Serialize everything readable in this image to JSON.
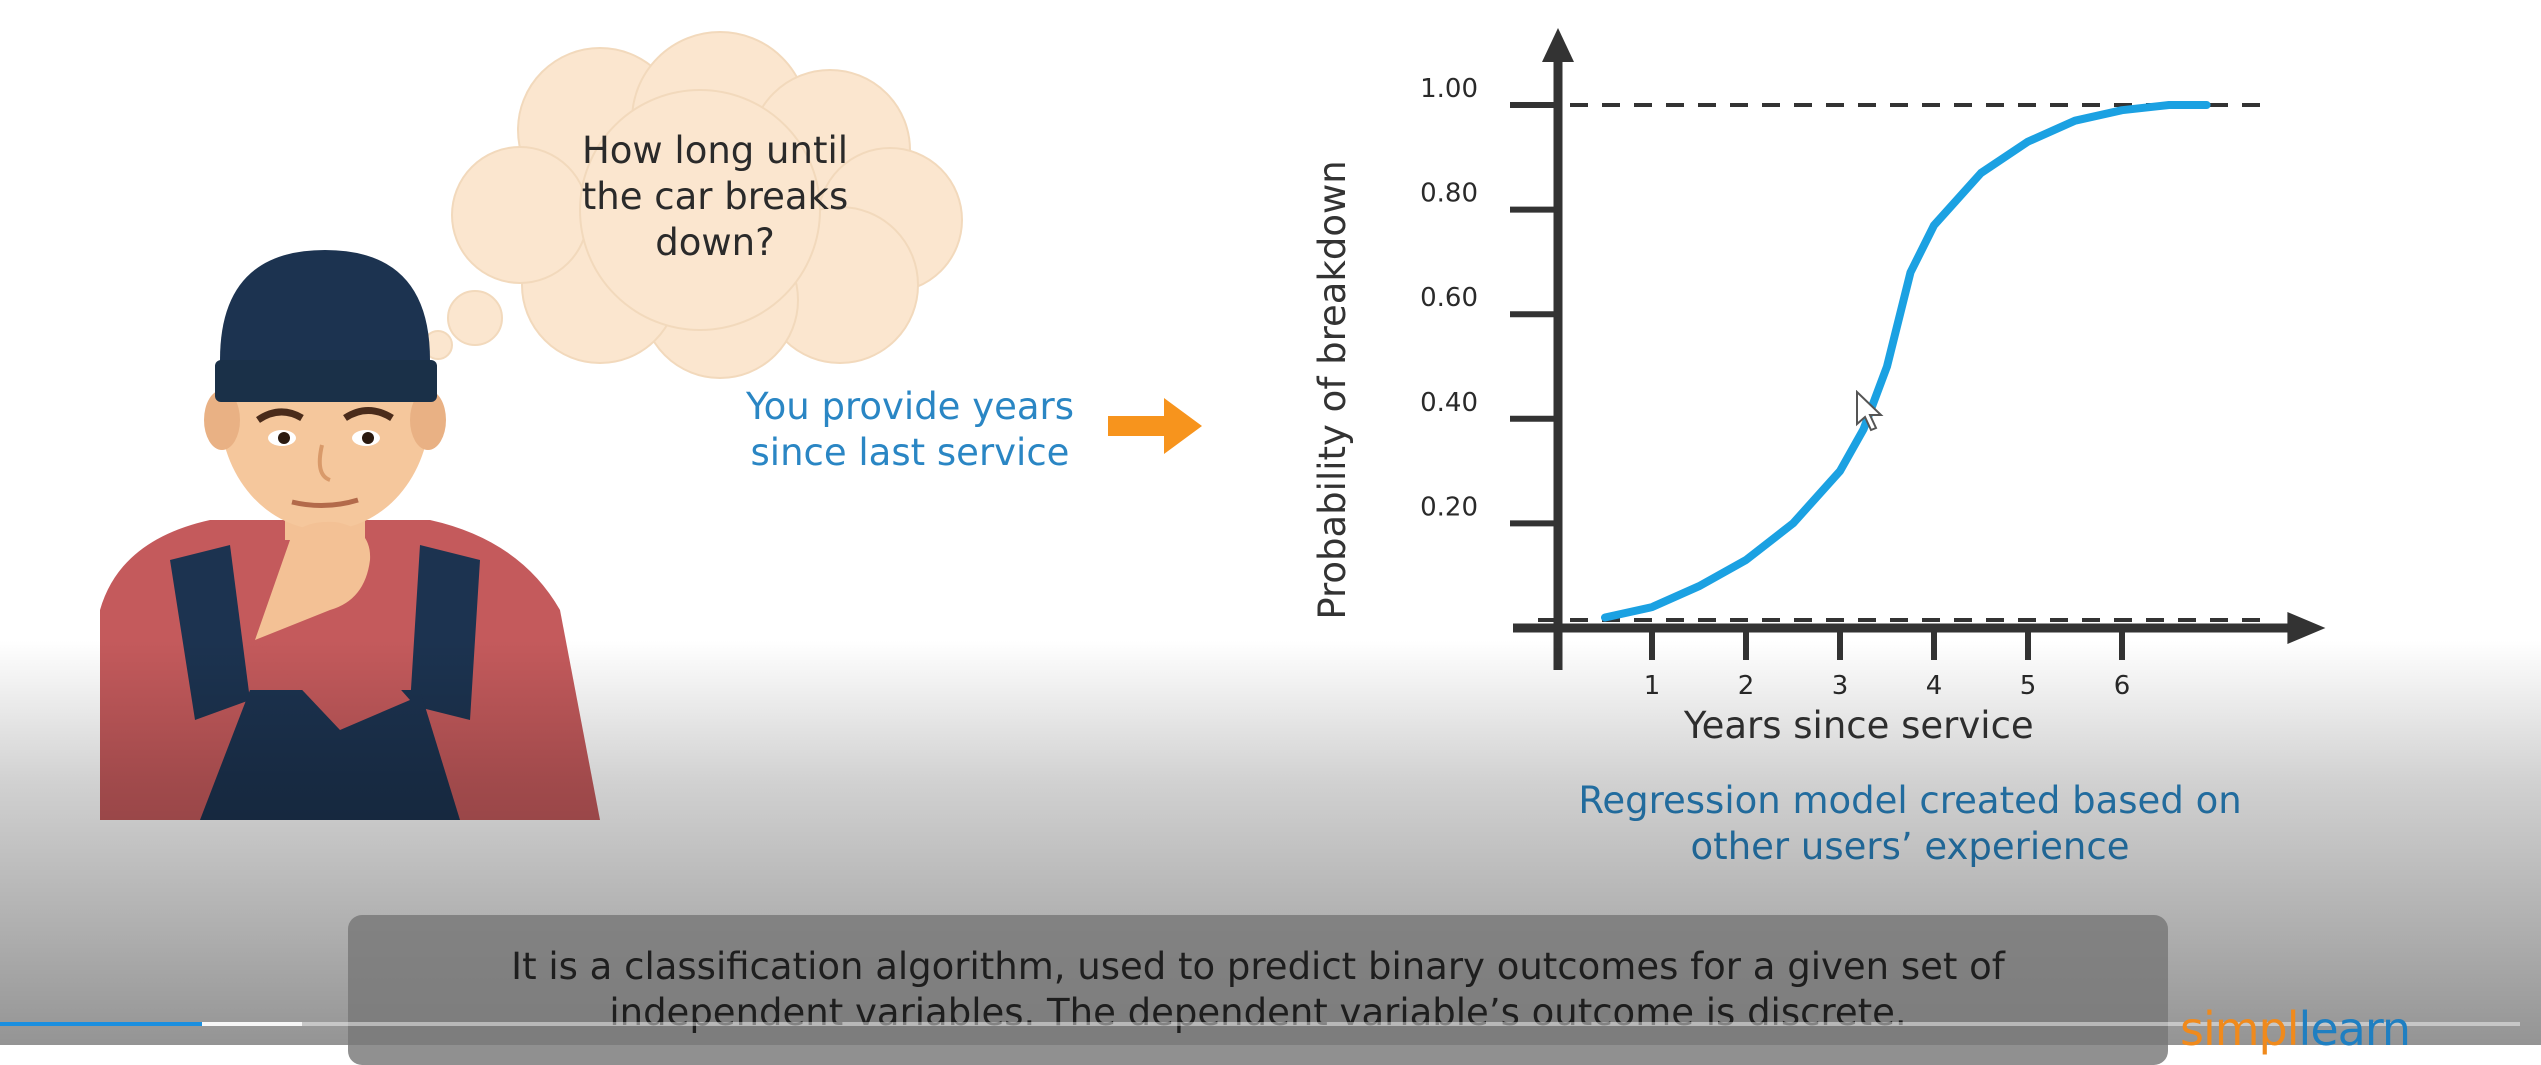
{
  "thought_bubble": {
    "text": "How long until\nthe car breaks\ndown?"
  },
  "provide_text": "You provide years\nsince last service",
  "regression_caption": "Regression model created based on\nother users’ experience",
  "bottom_caption": "It is a classification algorithm, used to predict binary outcomes for a given set of\nindependent variables. The dependent variable’s outcome is discrete.",
  "video": {
    "progress_fraction": 0.08,
    "buffered_fraction": 0.12
  },
  "logo": {
    "part1": "simpl",
    "part2": "learn"
  },
  "colors": {
    "curve": "#1ba1e2",
    "accent_text": "#2a86c4",
    "arrow": "#f7941d",
    "axis": "#333333"
  },
  "chart_data": {
    "type": "line",
    "xlabel": "Years since service",
    "ylabel": "Probability of breakdown",
    "x_ticks": [
      "1",
      "2",
      "3",
      "4",
      "5",
      "6"
    ],
    "y_ticks": [
      "0.20",
      "0.40",
      "0.60",
      "0.80",
      "1.00"
    ],
    "xlim": [
      0,
      7.1
    ],
    "ylim": [
      0,
      1.0
    ],
    "reference_lines": [
      0.0,
      1.0
    ],
    "series": [
      {
        "x": [
          0.5,
          1.0,
          1.5,
          2.0,
          2.5,
          3.0,
          3.25,
          3.5,
          3.75,
          4.0,
          4.5,
          5.0,
          5.5,
          6.0,
          6.5,
          6.9
        ],
        "y": [
          0.02,
          0.04,
          0.08,
          0.13,
          0.2,
          0.3,
          0.38,
          0.5,
          0.68,
          0.77,
          0.87,
          0.93,
          0.97,
          0.99,
          1.0,
          1.0
        ]
      }
    ]
  }
}
